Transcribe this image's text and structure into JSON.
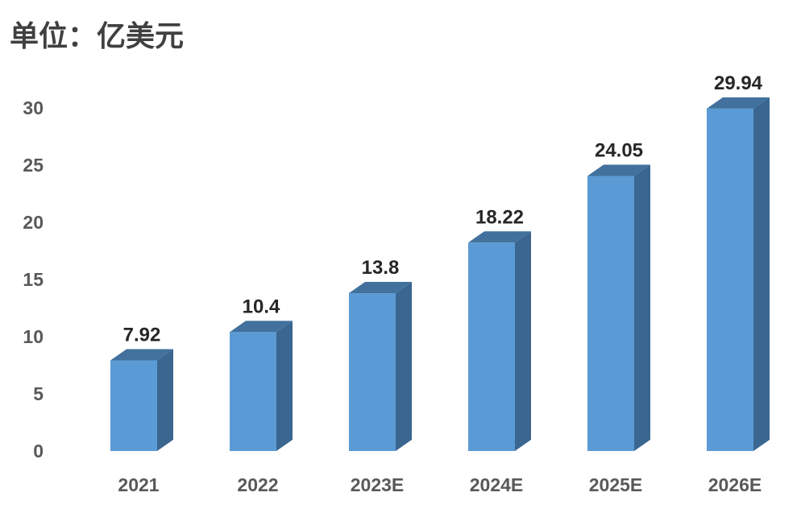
{
  "unit_label": "单位：亿美元",
  "colors": {
    "bar_front": "#5B9BD5",
    "bar_top": "#41719C",
    "bar_side": "#3A6690"
  },
  "chart_data": {
    "type": "bar",
    "categories": [
      "2021",
      "2022",
      "2023E",
      "2024E",
      "2025E",
      "2026E"
    ],
    "values": [
      7.92,
      10.4,
      13.8,
      18.22,
      24.05,
      29.94
    ],
    "data_labels": [
      "7.92",
      "10.4",
      "13.8",
      "18.22",
      "24.05",
      "29.94"
    ],
    "yticks": [
      "0",
      "5",
      "10",
      "15",
      "20",
      "25",
      "30"
    ],
    "ylim": [
      0,
      30
    ],
    "grid": false,
    "legend": "none",
    "style": "3d-column"
  }
}
